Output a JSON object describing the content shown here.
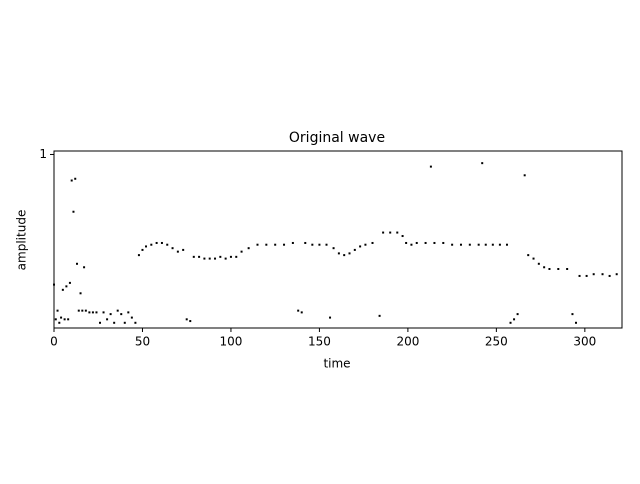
{
  "chart_data": {
    "type": "scatter",
    "title": "Original wave",
    "x_label": "time",
    "y_label": "amplitude",
    "color": "#000000",
    "xlim": [
      0,
      321
    ],
    "xticks": [
      0,
      50,
      100,
      150,
      200,
      250,
      300
    ],
    "ylim": [
      0,
      1.02
    ],
    "yticks": [
      1
    ],
    "x": [
      0,
      1,
      2,
      3,
      4,
      5,
      6,
      7,
      8,
      9,
      10,
      11,
      12,
      13,
      14,
      15,
      16,
      17,
      18,
      20,
      22,
      24,
      26,
      28,
      30,
      32,
      34,
      36,
      38,
      40,
      42,
      44,
      46,
      48,
      50,
      52,
      55,
      58,
      61,
      64,
      67,
      70,
      73,
      75,
      77,
      79,
      82,
      85,
      88,
      91,
      94,
      97,
      100,
      103,
      106,
      110,
      115,
      120,
      125,
      130,
      135,
      138,
      140,
      142,
      146,
      150,
      154,
      156,
      158,
      161,
      164,
      167,
      170,
      173,
      176,
      180,
      184,
      186,
      190,
      194,
      197,
      199,
      202,
      205,
      210,
      213,
      215,
      220,
      225,
      230,
      235,
      240,
      242,
      244,
      248,
      252,
      256,
      258,
      260,
      262,
      266,
      268,
      271,
      274,
      277,
      280,
      285,
      290,
      293,
      295,
      297,
      301,
      305,
      310,
      314,
      318
    ],
    "values": [
      0.25,
      0.05,
      0.1,
      0.03,
      0.06,
      0.22,
      0.05,
      0.24,
      0.05,
      0.26,
      0.85,
      0.67,
      0.86,
      0.37,
      0.1,
      0.2,
      0.1,
      0.35,
      0.1,
      0.09,
      0.09,
      0.09,
      0.03,
      0.09,
      0.05,
      0.08,
      0.03,
      0.1,
      0.08,
      0.03,
      0.09,
      0.06,
      0.03,
      0.42,
      0.45,
      0.47,
      0.48,
      0.49,
      0.49,
      0.48,
      0.46,
      0.44,
      0.45,
      0.05,
      0.04,
      0.41,
      0.41,
      0.4,
      0.4,
      0.4,
      0.41,
      0.4,
      0.41,
      0.41,
      0.44,
      0.46,
      0.48,
      0.48,
      0.48,
      0.48,
      0.49,
      0.1,
      0.09,
      0.49,
      0.48,
      0.48,
      0.48,
      0.06,
      0.46,
      0.43,
      0.42,
      0.43,
      0.45,
      0.47,
      0.48,
      0.49,
      0.07,
      0.55,
      0.55,
      0.55,
      0.53,
      0.49,
      0.48,
      0.49,
      0.49,
      0.93,
      0.49,
      0.49,
      0.48,
      0.48,
      0.48,
      0.48,
      0.95,
      0.48,
      0.48,
      0.48,
      0.48,
      0.03,
      0.05,
      0.08,
      0.88,
      0.42,
      0.4,
      0.37,
      0.35,
      0.34,
      0.34,
      0.34,
      0.08,
      0.03,
      0.3,
      0.3,
      0.31,
      0.31,
      0.3,
      0.31
    ]
  }
}
